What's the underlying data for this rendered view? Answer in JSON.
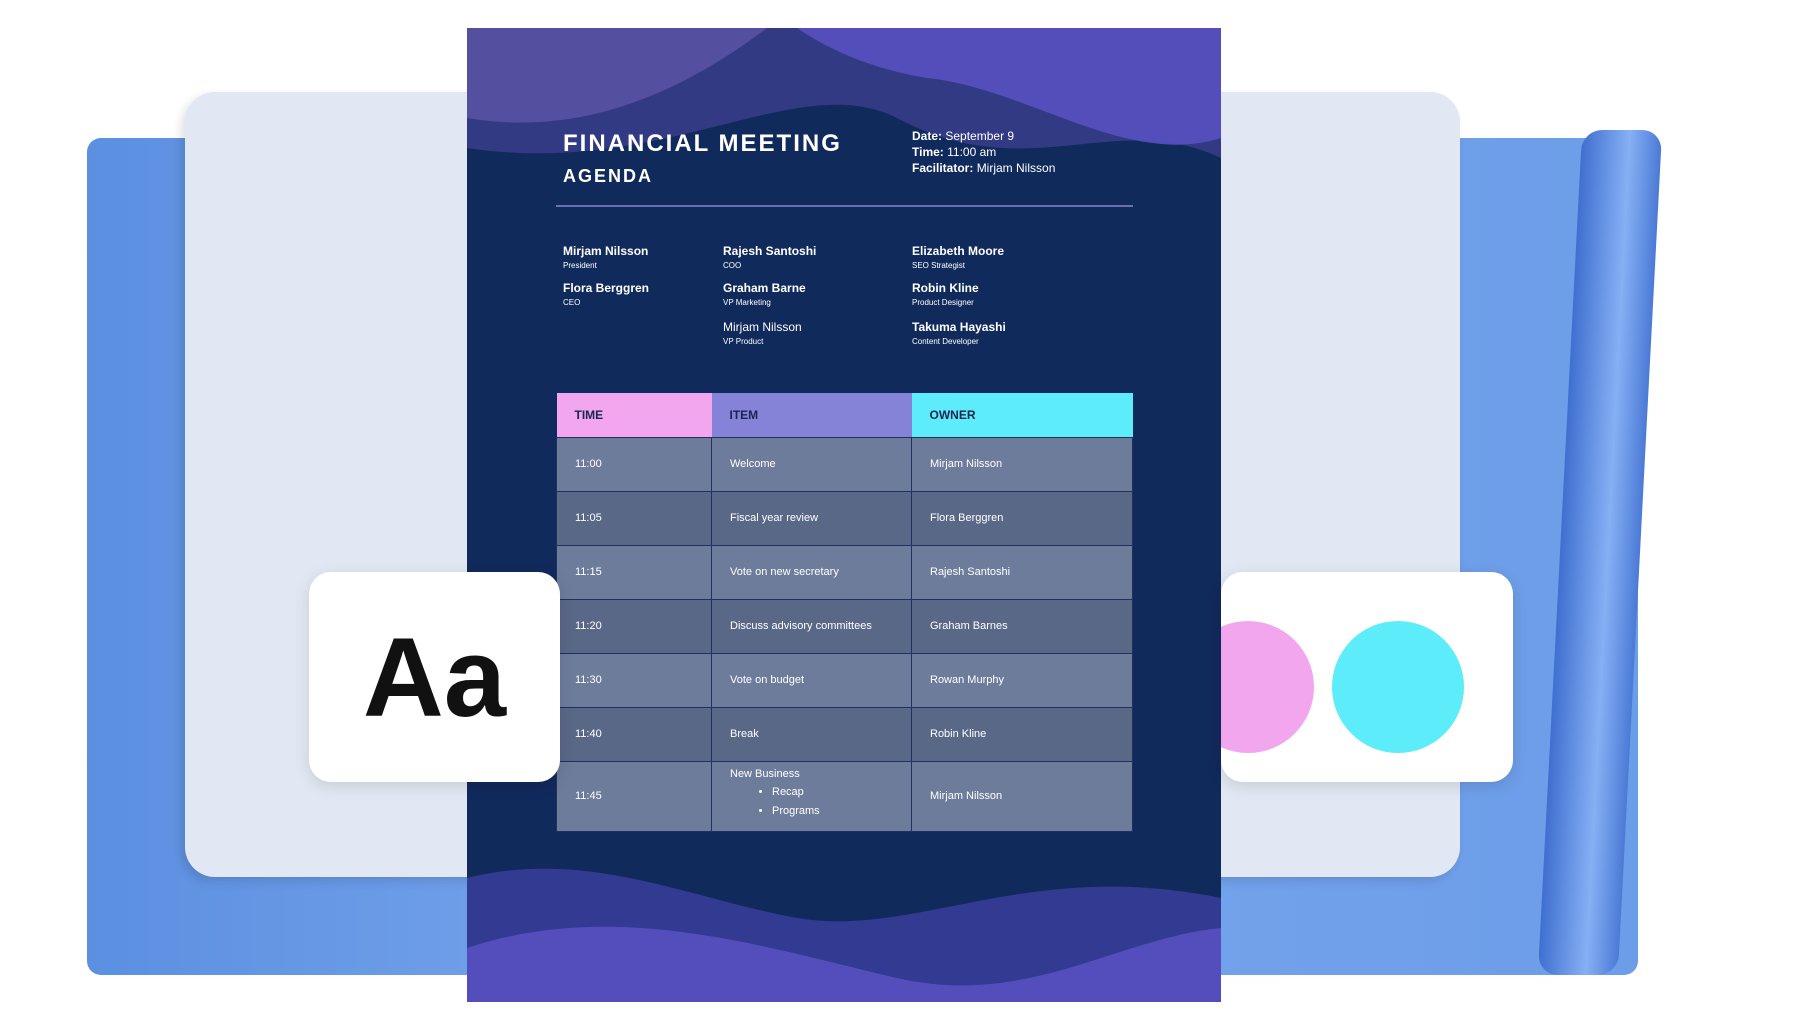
{
  "document": {
    "title": "FINANCIAL MEETING",
    "subtitle": "AGENDA",
    "info": [
      {
        "label": "Date:",
        "value": "September 9"
      },
      {
        "label": "Time:",
        "value": "11:00 am"
      },
      {
        "label": "Facilitator:",
        "value": "Mirjam Nilsson"
      }
    ],
    "attendees": [
      {
        "name": "Mirjam Nilsson",
        "role": "President"
      },
      {
        "name": "Flora Berggren",
        "role": "CEO"
      },
      {
        "name": "Rajesh Santoshi",
        "role": "COO"
      },
      {
        "name": "Graham Barne",
        "role": "VP Marketing"
      },
      {
        "name": "Mirjam Nilsson",
        "role": "VP Product"
      },
      {
        "name": "Elizabeth Moore",
        "role": "SEO Strategist"
      },
      {
        "name": "Robin Kline",
        "role": "Product Designer"
      },
      {
        "name": "Takuma Hayashi",
        "role": "Content Developer"
      }
    ],
    "table": {
      "headers": [
        "TIME",
        "ITEM",
        "OWNER"
      ],
      "header_colors": [
        "#f1a6ee",
        "#8583d8",
        "#5cecfa"
      ],
      "rows": [
        {
          "time": "11:00",
          "item": "Welcome",
          "owner": "Mirjam Nilsson"
        },
        {
          "time": "11:05",
          "item": "Fiscal year review",
          "owner": "Flora Berggren"
        },
        {
          "time": "11:15",
          "item": "Vote on new secretary",
          "owner": "Rajesh Santoshi"
        },
        {
          "time": "11:20",
          "item": "Discuss advisory committees",
          "owner": "Graham Barnes"
        },
        {
          "time": "11:30",
          "item": "Vote on budget",
          "owner": "Rowan Murphy"
        },
        {
          "time": "11:40",
          "item": "Break",
          "owner": "Robin Kline"
        },
        {
          "time": "11:45",
          "item": "New Business",
          "subitems": [
            "Recap",
            "Programs"
          ],
          "owner": "Mirjam Nilsson"
        }
      ]
    }
  },
  "font_card": {
    "sample": "Aa"
  },
  "color_card": {
    "colors": [
      "#f1a6ee",
      "#5cecfa"
    ]
  }
}
